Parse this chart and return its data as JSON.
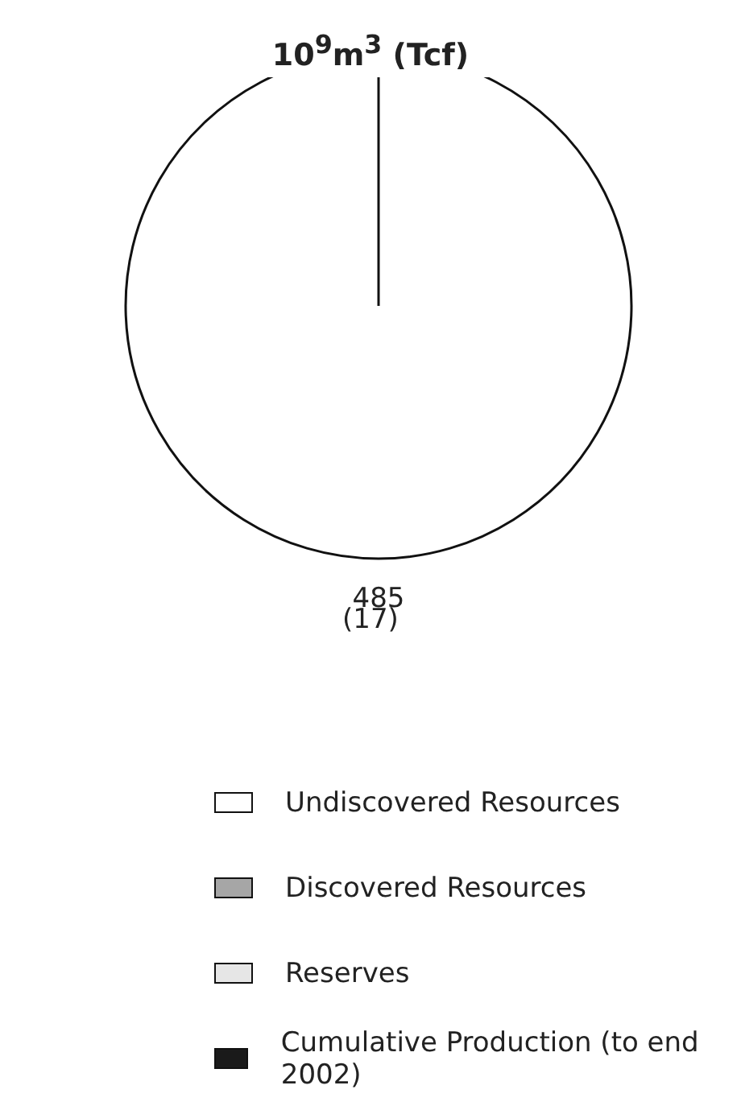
{
  "chart_data": {
    "type": "pie",
    "title": "10$^{9}$m$^{3}$ (Tcf)",
    "categories": [
      "Undiscovered Resources",
      "Discovered Resources",
      "Reserves",
      "Cumulative Production (to end 2002)"
    ],
    "values": [
      485,
      0,
      0,
      0
    ],
    "colors": [
      "#ffffff",
      "#a6a6a6",
      "#e6e6e6",
      "#1a1a1a"
    ],
    "value_labels": [
      "485",
      null,
      null,
      null
    ],
    "annotations": [
      "(17)"
    ],
    "legend": "bottom"
  }
}
